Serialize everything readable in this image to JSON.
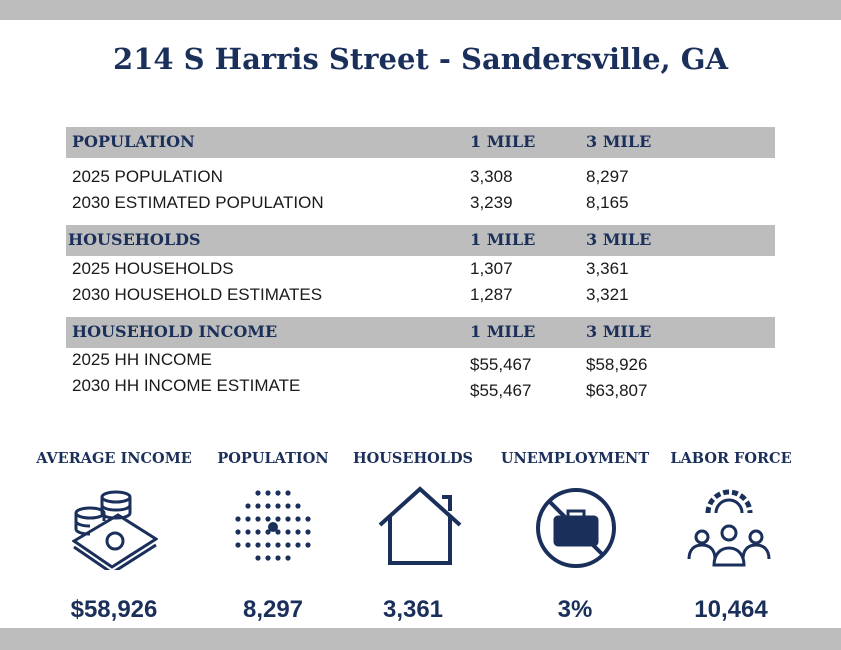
{
  "title": "214 S Harris Street - Sandersville, GA",
  "table": {
    "sections": [
      {
        "header": [
          "POPULATION",
          "1 MILE",
          "3 MILE"
        ],
        "rows": [
          [
            "2025 POPULATION",
            "3,308",
            "8,297"
          ],
          [
            "2030 ESTIMATED POPULATION",
            "3,239",
            "8,165"
          ]
        ]
      },
      {
        "header": [
          "HOUSEHOLDS",
          "1 MILE",
          "3 MILE"
        ],
        "rows": [
          [
            "2025 HOUSEHOLDS",
            "1,307",
            "3,361"
          ],
          [
            "2030 HOUSEHOLD ESTIMATES",
            "1,287",
            "3,321"
          ]
        ]
      },
      {
        "header": [
          "HOUSEHOLD INCOME",
          "1 MILE",
          "3 MILE"
        ],
        "rows": [
          [
            "2025 HH INCOME",
            "$55,467",
            "$58,926"
          ],
          [
            "2030 HH INCOME ESTIMATE",
            "$55,467",
            "$63,807"
          ]
        ]
      }
    ]
  },
  "stats": [
    {
      "label": "AVERAGE INCOME",
      "value": "$58,926"
    },
    {
      "label": "POPULATION",
      "value": "8,297"
    },
    {
      "label": "HOUSEHOLDS",
      "value": "3,361"
    },
    {
      "label": "UNEMPLOYMENT",
      "value": "3%"
    },
    {
      "label": "LABOR FORCE",
      "value": "10,464"
    }
  ]
}
